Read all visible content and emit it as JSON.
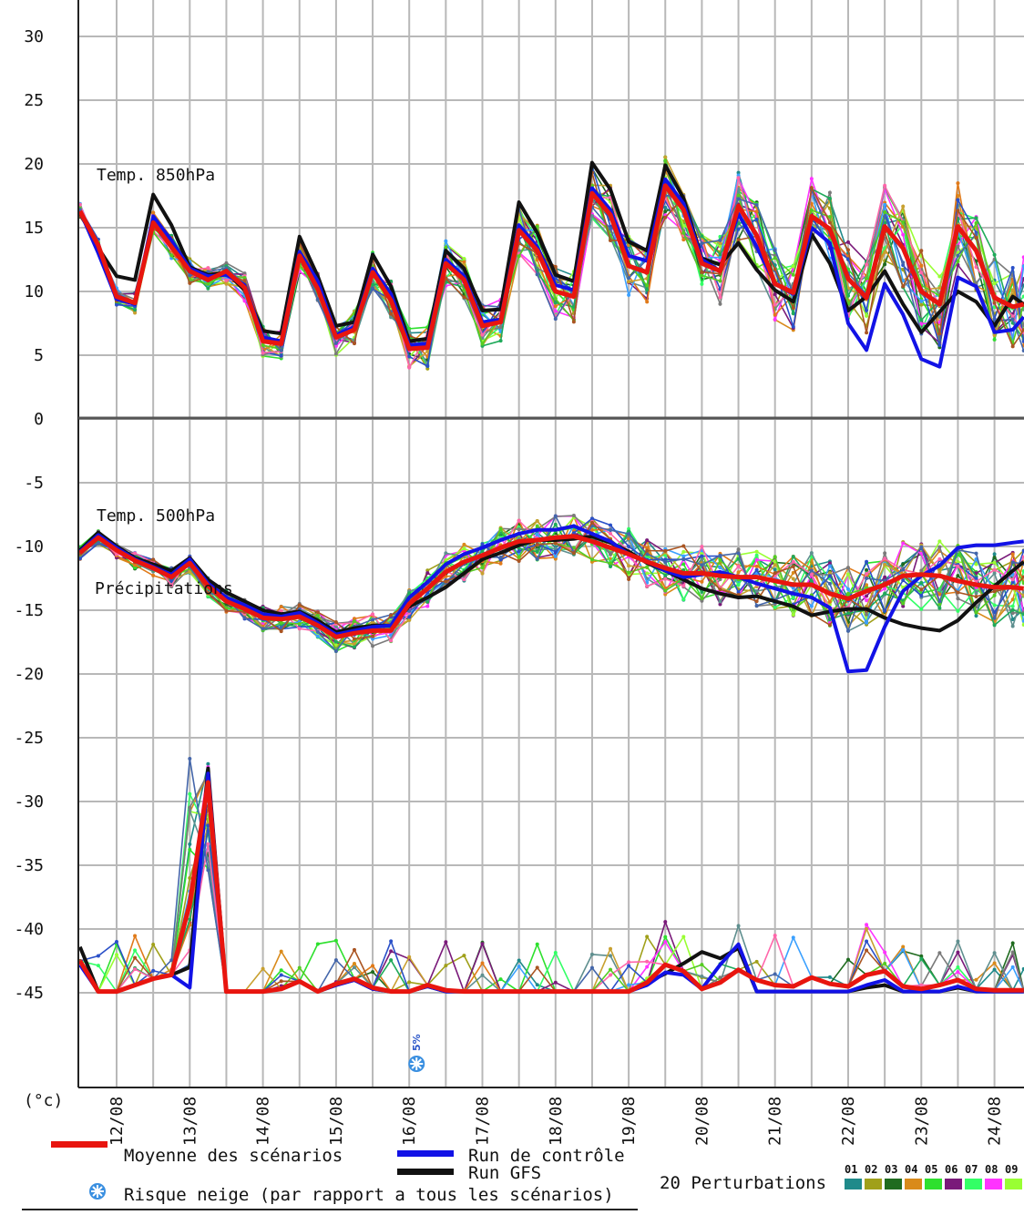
{
  "chart_data": {
    "type": "line",
    "unit_label": "(°c)",
    "ylim": [
      -50,
      30
    ],
    "yticks": [
      30,
      25,
      20,
      15,
      10,
      5,
      0,
      -5,
      -10,
      -15,
      -20,
      -25,
      -30,
      -35,
      -40,
      -45
    ],
    "x_dates": [
      "12/08",
      "13/08",
      "14/08",
      "15/08",
      "16/08",
      "17/08",
      "18/08",
      "19/08",
      "20/08",
      "21/08",
      "22/08",
      "23/08",
      "24/08"
    ],
    "xlim": [
      11.5,
      24.4
    ],
    "grid": true,
    "panel_labels": {
      "t850": "Temp. 850hPa",
      "t500": "Temp. 500hPa",
      "precip": "Précipitations"
    },
    "x": [
      11.5,
      11.75,
      12.0,
      12.25,
      12.5,
      12.75,
      13.0,
      13.25,
      13.5,
      13.75,
      14.0,
      14.25,
      14.5,
      14.75,
      15.0,
      15.25,
      15.5,
      15.75,
      16.0,
      16.25,
      16.5,
      16.75,
      17.0,
      17.25,
      17.5,
      17.75,
      18.0,
      18.25,
      18.5,
      18.75,
      19.0,
      19.25,
      19.5,
      19.75,
      20.0,
      20.25,
      20.5,
      20.75,
      21.0,
      21.25,
      21.5,
      21.75,
      22.0,
      22.25,
      22.5,
      22.75,
      23.0,
      23.25,
      23.5,
      23.75,
      24.0,
      24.25,
      24.4
    ],
    "series": [
      {
        "name": "Moyenne des scénarios",
        "color": "#e8150f",
        "t850": [
          16.3,
          13.6,
          9.6,
          9.1,
          15.4,
          13.5,
          11.6,
          10.9,
          11.6,
          10.3,
          6.1,
          5.9,
          12.8,
          10.2,
          6.4,
          7.0,
          11.5,
          9.3,
          5.5,
          5.6,
          12.2,
          10.9,
          7.3,
          7.6,
          14.8,
          13.2,
          10.0,
          9.6,
          17.7,
          16.0,
          12.0,
          11.5,
          18.3,
          16.4,
          12.2,
          11.6,
          16.7,
          14.4,
          10.6,
          9.9,
          15.9,
          14.9,
          11.0,
          9.5,
          15.1,
          13.4,
          10.0,
          9.0,
          15.1,
          13.2,
          9.5,
          8.8,
          9.0
        ],
        "t500": [
          -10.5,
          -9.3,
          -10.3,
          -11.1,
          -11.7,
          -12.4,
          -11.3,
          -13.1,
          -14.3,
          -14.9,
          -15.6,
          -15.7,
          -15.5,
          -16.2,
          -17.1,
          -16.8,
          -16.6,
          -16.6,
          -14.5,
          -13.3,
          -12.0,
          -11.2,
          -10.7,
          -10.1,
          -9.6,
          -9.5,
          -9.3,
          -9.2,
          -9.6,
          -10.1,
          -10.6,
          -11.2,
          -11.7,
          -12.1,
          -12.1,
          -12.3,
          -12.4,
          -12.4,
          -12.7,
          -13.0,
          -13.0,
          -13.7,
          -14.1,
          -13.5,
          -13.0,
          -12.3,
          -12.2,
          -12.3,
          -12.7,
          -13.0,
          -13.2,
          -13.2,
          -13.3
        ],
        "precip": [
          -42.5,
          -44.9,
          -44.9,
          -44.4,
          -43.9,
          -43.6,
          -38.0,
          -28.5,
          -44.9,
          -44.9,
          -44.9,
          -44.7,
          -44.1,
          -44.9,
          -44.3,
          -43.9,
          -44.6,
          -44.9,
          -44.9,
          -44.4,
          -44.8,
          -44.9,
          -44.9,
          -44.9,
          -44.9,
          -44.9,
          -44.9,
          -44.9,
          -44.9,
          -44.9,
          -44.9,
          -44.2,
          -42.8,
          -43.3,
          -44.7,
          -44.2,
          -43.2,
          -44.0,
          -44.4,
          -44.5,
          -43.8,
          -44.3,
          -44.5,
          -43.6,
          -43.3,
          -44.5,
          -44.7,
          -44.4,
          -44.0,
          -44.7,
          -44.8,
          -44.8,
          -44.8
        ]
      },
      {
        "name": "Run de contrôle",
        "color": "#1212e6",
        "t850": [
          16.3,
          13.0,
          9.4,
          9.0,
          15.9,
          14.0,
          11.8,
          11.2,
          11.3,
          10.5,
          6.4,
          6.1,
          13.1,
          10.8,
          6.6,
          7.2,
          11.8,
          9.8,
          5.8,
          5.9,
          12.5,
          11.2,
          7.6,
          7.8,
          15.2,
          13.5,
          10.5,
          10.1,
          18.1,
          16.4,
          12.8,
          12.4,
          18.8,
          16.9,
          12.5,
          11.6,
          16.1,
          13.5,
          10.6,
          9.8,
          15.0,
          13.8,
          7.5,
          5.4,
          10.6,
          8.2,
          4.7,
          4.1,
          11.1,
          10.4,
          6.8,
          7.0,
          8.0
        ],
        "t500": [
          -10.4,
          -9.1,
          -10.1,
          -11.0,
          -11.6,
          -12.2,
          -11.0,
          -12.9,
          -14.0,
          -14.6,
          -15.3,
          -15.5,
          -15.2,
          -16.0,
          -16.9,
          -16.6,
          -16.3,
          -16.2,
          -14.0,
          -12.8,
          -11.4,
          -10.6,
          -10.1,
          -9.5,
          -9.0,
          -8.7,
          -8.7,
          -8.4,
          -9.0,
          -9.6,
          -10.6,
          -11.2,
          -11.9,
          -12.4,
          -12.2,
          -12.0,
          -12.4,
          -12.9,
          -13.3,
          -13.7,
          -14.0,
          -14.8,
          -19.8,
          -19.7,
          -16.3,
          -13.5,
          -12.3,
          -11.5,
          -10.1,
          -9.9,
          -9.9,
          -9.7,
          -9.6
        ],
        "precip": [
          -42.8,
          -44.9,
          -44.9,
          -44.4,
          -43.9,
          -43.6,
          -44.6,
          -27.8,
          -44.9,
          -44.9,
          -44.9,
          -44.7,
          -44.1,
          -44.9,
          -44.4,
          -44.0,
          -44.7,
          -44.9,
          -44.9,
          -44.5,
          -44.9,
          -44.9,
          -44.9,
          -44.9,
          -44.9,
          -44.9,
          -44.9,
          -44.9,
          -44.9,
          -44.9,
          -44.9,
          -44.4,
          -43.4,
          -43.6,
          -44.7,
          -42.8,
          -41.2,
          -44.9,
          -44.9,
          -44.9,
          -44.9,
          -44.9,
          -44.9,
          -44.4,
          -44.0,
          -44.9,
          -44.9,
          -44.9,
          -44.5,
          -44.9,
          -44.9,
          -44.9,
          -44.9
        ]
      },
      {
        "name": "Run GFS",
        "color": "#111111",
        "t850": [
          16.2,
          13.4,
          11.2,
          10.9,
          17.6,
          15.2,
          11.9,
          11.3,
          11.5,
          10.1,
          6.9,
          6.7,
          14.3,
          11.2,
          7.3,
          7.6,
          12.9,
          10.4,
          6.1,
          6.3,
          13.2,
          11.8,
          8.5,
          8.6,
          17.0,
          14.6,
          11.3,
          10.8,
          20.1,
          18.0,
          13.9,
          13.2,
          19.9,
          17.3,
          12.6,
          12.1,
          13.8,
          11.7,
          10.1,
          9.2,
          14.5,
          12.2,
          8.5,
          9.6,
          11.6,
          9.0,
          6.8,
          8.4,
          10.0,
          9.2,
          7.3,
          9.6,
          9.0
        ],
        "t500": [
          -10.3,
          -8.9,
          -10.0,
          -10.9,
          -11.4,
          -11.9,
          -10.9,
          -12.6,
          -13.6,
          -14.3,
          -15.0,
          -15.3,
          -15.1,
          -15.8,
          -16.7,
          -16.4,
          -16.2,
          -16.2,
          -14.7,
          -14.0,
          -13.2,
          -12.1,
          -11.0,
          -10.5,
          -9.9,
          -9.5,
          -9.5,
          -9.4,
          -9.2,
          -9.7,
          -10.4,
          -11.3,
          -11.9,
          -12.6,
          -13.3,
          -13.7,
          -14.0,
          -13.9,
          -14.3,
          -14.7,
          -15.4,
          -15.1,
          -14.9,
          -14.9,
          -15.6,
          -16.1,
          -16.4,
          -16.6,
          -15.8,
          -14.4,
          -13.1,
          -11.9,
          -11.2
        ],
        "precip": [
          -41.4,
          -44.9,
          -44.9,
          -44.4,
          -43.9,
          -43.6,
          -43.0,
          -27.4,
          -44.9,
          -44.9,
          -44.9,
          -44.7,
          -44.1,
          -44.9,
          -44.4,
          -44.0,
          -44.7,
          -44.9,
          -44.9,
          -44.5,
          -44.9,
          -44.9,
          -44.9,
          -44.9,
          -44.9,
          -44.9,
          -44.9,
          -44.9,
          -44.9,
          -44.9,
          -44.9,
          -44.2,
          -43.5,
          -42.7,
          -41.8,
          -42.3,
          -41.5,
          -44.9,
          -44.9,
          -44.9,
          -44.9,
          -44.9,
          -44.9,
          -44.6,
          -44.4,
          -44.9,
          -44.9,
          -44.9,
          -44.6,
          -44.9,
          -44.9,
          -44.9,
          -44.9
        ]
      }
    ],
    "perturbations": {
      "count": 20,
      "colors": [
        "#1f8a8a",
        "#a0a01a",
        "#1f6b1f",
        "#d98a1a",
        "#2ee02e",
        "#7a1a7a",
        "#33ff66",
        "#ff33ff",
        "#99ff33",
        "#5f8f8f",
        "#e07a1a",
        "#3aa0ff",
        "#7a7a7a",
        "#c8a030",
        "#1faa5a",
        "#2a50c8",
        "#ff66aa",
        "#55cc22",
        "#4466aa",
        "#aa5522"
      ]
    },
    "snow_risk": [
      {
        "x": 16.1,
        "label": "5%"
      }
    ],
    "legend": [
      {
        "label": "Moyenne des scénarios",
        "color": "#e8150f"
      },
      {
        "label": "Run de contrôle",
        "color": "#1212e6"
      },
      {
        "label": "Run GFS",
        "color": "#111111"
      },
      {
        "label": "Risque neige (par rapport a tous les scénarios)",
        "color": "#3a8fe0"
      },
      {
        "label": "20 Perturbations",
        "numbers": [
          "01",
          "02",
          "03",
          "04",
          "05",
          "06",
          "07",
          "08",
          "09"
        ],
        "colors": [
          "#1f8a8a",
          "#a0a01a",
          "#1f6b1f",
          "#d98a1a",
          "#2ee02e",
          "#7a1a7a",
          "#33ff66",
          "#ff33ff",
          "#99ff33"
        ]
      }
    ]
  }
}
